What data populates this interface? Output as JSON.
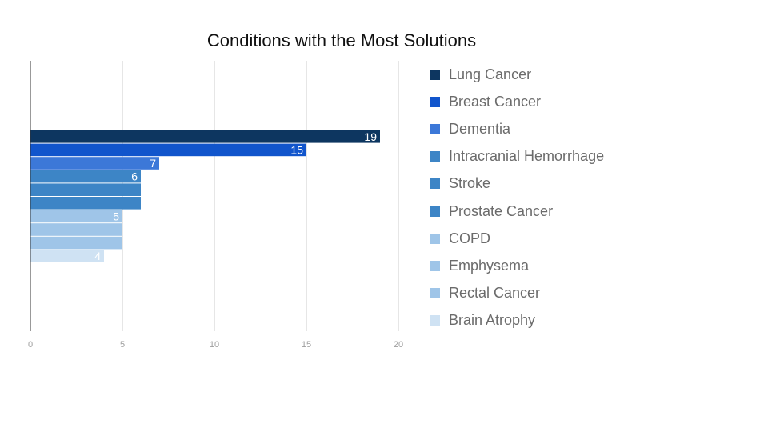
{
  "chart_data": {
    "type": "bar",
    "orientation": "horizontal",
    "title": "Conditions with the Most Solutions",
    "xlabel": "",
    "ylabel": "",
    "xlim": [
      0,
      20
    ],
    "x_ticks": [
      "0",
      "5",
      "10",
      "15",
      "20"
    ],
    "grid": "vertical",
    "legend_position": "right",
    "series": [
      {
        "name": "Lung Cancer",
        "value": 19,
        "label": "19",
        "color": "#0d3660"
      },
      {
        "name": "Breast Cancer",
        "value": 15,
        "label": "15",
        "color": "#1155cc"
      },
      {
        "name": "Dementia",
        "value": 7,
        "label": "7",
        "color": "#3c78d8"
      },
      {
        "name": "Intracranial Hemorrhage",
        "value": 6,
        "label": "6",
        "color": "#3d85c6"
      },
      {
        "name": "Stroke",
        "value": 6,
        "label": "",
        "color": "#3d85c6"
      },
      {
        "name": "Prostate Cancer",
        "value": 6,
        "label": "",
        "color": "#3d85c6"
      },
      {
        "name": "COPD",
        "value": 5,
        "label": "5",
        "color": "#9fc5e8"
      },
      {
        "name": "Emphysema",
        "value": 5,
        "label": "",
        "color": "#9fc5e8"
      },
      {
        "name": "Rectal Cancer",
        "value": 5,
        "label": "",
        "color": "#9fc5e8"
      },
      {
        "name": "Brain Atrophy",
        "value": 4,
        "label": "4",
        "color": "#cfe2f3"
      }
    ]
  }
}
